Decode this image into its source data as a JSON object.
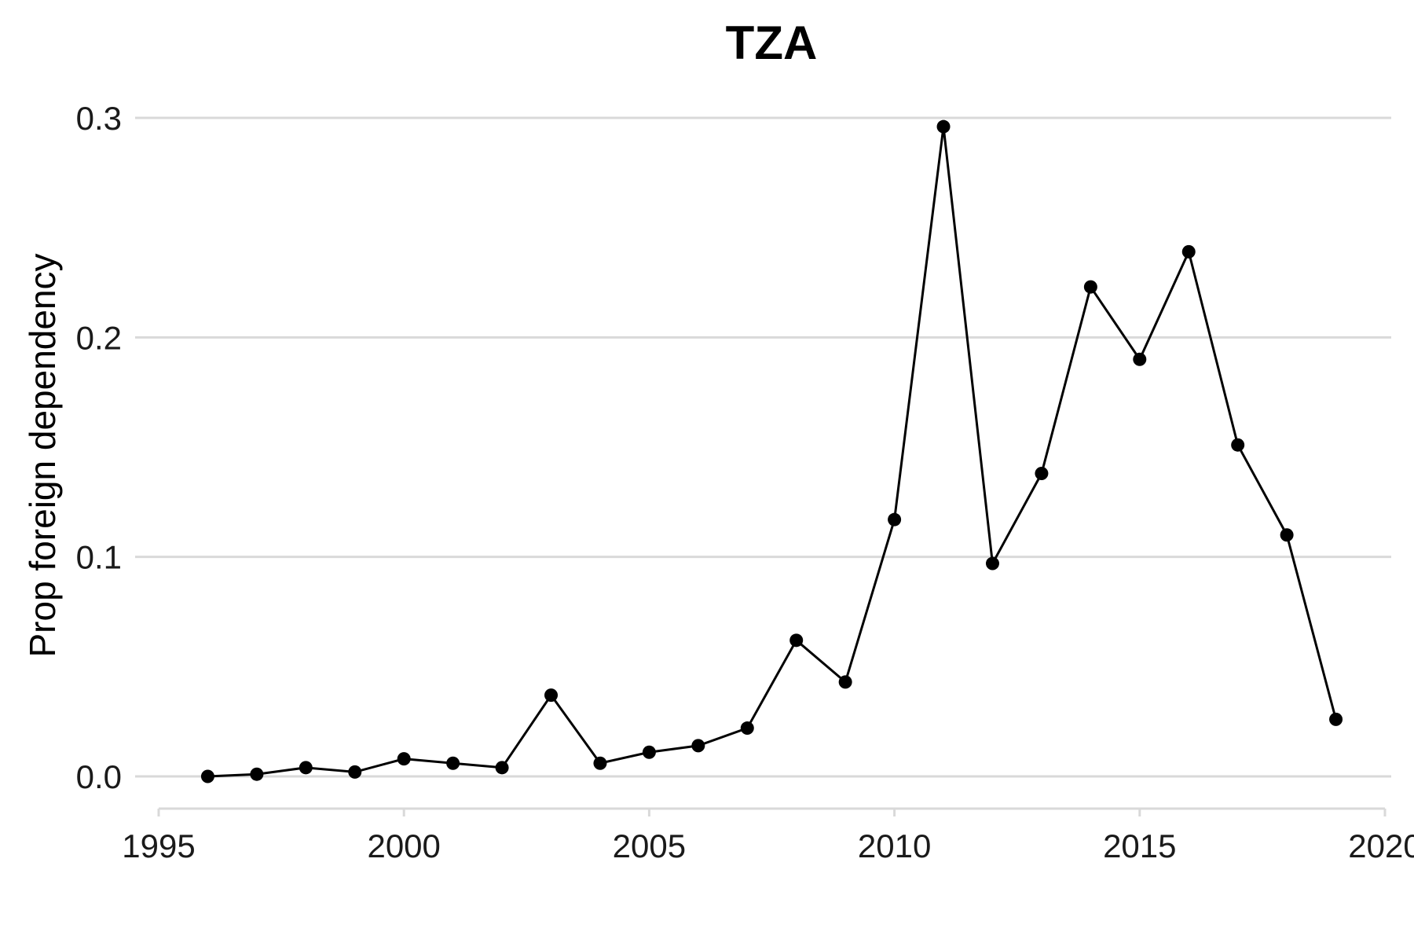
{
  "chart_data": {
    "type": "line",
    "title": "TZA",
    "xlabel": "",
    "ylabel": "Prop foreign dependency",
    "xlim": [
      1995,
      2020
    ],
    "ylim": [
      -0.015,
      0.31
    ],
    "x_ticks": [
      1995,
      2000,
      2005,
      2010,
      2015,
      2020
    ],
    "x_tick_labels": [
      "1995",
      "2000",
      "2005",
      "2010",
      "2015",
      "2020"
    ],
    "y_ticks": [
      0.0,
      0.1,
      0.2,
      0.3
    ],
    "y_tick_labels": [
      "0.0",
      "0.1",
      "0.2",
      "0.3"
    ],
    "grid": "horizontal",
    "legend": "none",
    "series": [
      {
        "color": "#000000",
        "x": [
          1996,
          1997,
          1998,
          1999,
          2000,
          2001,
          2002,
          2003,
          2004,
          2005,
          2006,
          2007,
          2008,
          2009,
          2010,
          2011,
          2012,
          2013,
          2014,
          2015,
          2016,
          2017,
          2018,
          2019
        ],
        "y": [
          0.0,
          0.001,
          0.004,
          0.002,
          0.008,
          0.006,
          0.004,
          0.037,
          0.006,
          0.011,
          0.014,
          0.022,
          0.062,
          0.043,
          0.117,
          0.296,
          0.097,
          0.138,
          0.223,
          0.19,
          0.239,
          0.151,
          0.11,
          0.026
        ]
      }
    ]
  }
}
